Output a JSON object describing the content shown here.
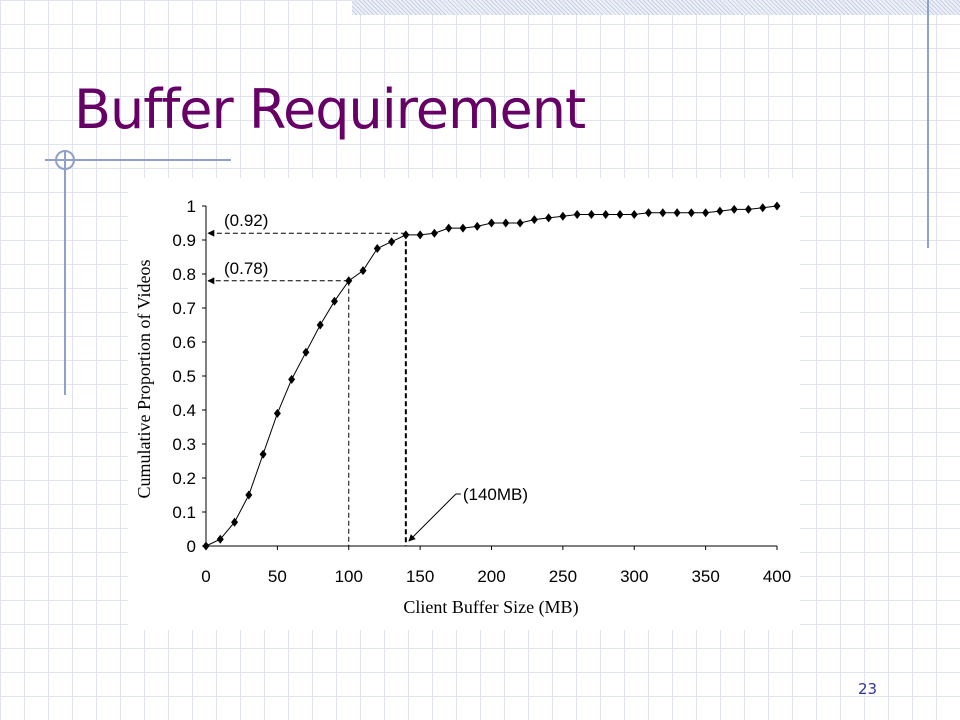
{
  "slide": {
    "title": "Buffer Requirement",
    "page_number": "23"
  },
  "chart_data": {
    "type": "line",
    "x_label": "Client Buffer Size (MB)",
    "y_label": "Cumulative Proportion of Videos",
    "x": [
      0,
      10,
      20,
      30,
      40,
      50,
      60,
      70,
      80,
      90,
      100,
      110,
      120,
      130,
      140,
      150,
      160,
      170,
      180,
      190,
      200,
      210,
      220,
      230,
      240,
      250,
      260,
      270,
      280,
      290,
      300,
      310,
      320,
      330,
      340,
      350,
      360,
      370,
      380,
      390,
      400
    ],
    "series": [
      {
        "name": "Cumulative proportion",
        "color": "#000000",
        "values": [
          0,
          0.02,
          0.07,
          0.15,
          0.27,
          0.39,
          0.49,
          0.57,
          0.65,
          0.72,
          0.78,
          0.81,
          0.875,
          0.895,
          0.915,
          0.915,
          0.92,
          0.935,
          0.935,
          0.94,
          0.95,
          0.95,
          0.95,
          0.96,
          0.965,
          0.97,
          0.975,
          0.975,
          0.975,
          0.975,
          0.975,
          0.98,
          0.98,
          0.98,
          0.98,
          0.98,
          0.985,
          0.99,
          0.99,
          0.995,
          1
        ]
      }
    ],
    "xlim": [
      0,
      400
    ],
    "xticks": [
      0,
      50,
      100,
      150,
      200,
      250,
      300,
      350,
      400
    ],
    "ylim": [
      0,
      1
    ],
    "yticks": [
      0,
      0.1,
      0.2,
      0.3,
      0.4,
      0.5,
      0.6,
      0.7,
      0.8,
      0.9,
      1
    ],
    "annotations": [
      {
        "text": "(0.92)",
        "x": 140,
        "y": 0.92
      },
      {
        "text": "(0.78)",
        "x": 100,
        "y": 0.78
      },
      {
        "text": "(140MB)",
        "x": 140
      }
    ]
  }
}
